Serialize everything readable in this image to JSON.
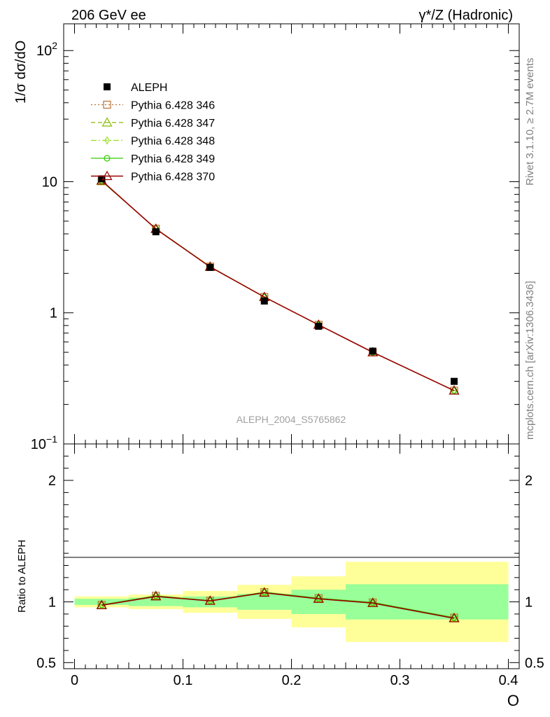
{
  "header": {
    "left": "206 GeV ee",
    "right": "γ*/Z (Hadronic)"
  },
  "side_labels": {
    "rivet": "Rivet 3.1.10, ≥ 2.7M events",
    "mcplots": "mcplots.cern.ch [arXiv:1306.3436]"
  },
  "watermark": "ALEPH_2004_S5765862",
  "colors": {
    "data": "#000000",
    "p346": "#b87333",
    "p347": "#88bb00",
    "p348": "#99dd22",
    "p349": "#33cc00",
    "p370": "#990000",
    "band_inner": "#99ff99",
    "band_outer": "#ffff99"
  },
  "chart_data": [
    {
      "type": "line",
      "panel": "main",
      "ylabel": "1/σ  dσ/dO",
      "yscale": "log",
      "ylim": [
        0.1,
        160
      ],
      "xlim": [
        -0.01,
        0.41
      ],
      "y_ticks": [
        {
          "value": 100,
          "label": "10",
          "sup": "2"
        },
        {
          "value": 10,
          "label": "10",
          "sup": ""
        },
        {
          "value": 1,
          "label": "1",
          "sup": ""
        },
        {
          "value": 0.1,
          "label": "10",
          "sup": "−1"
        }
      ],
      "legend_position": "top-left",
      "legend": [
        {
          "label": "ALEPH"
        },
        {
          "label": "Pythia 6.428 346"
        },
        {
          "label": "Pythia 6.428 347"
        },
        {
          "label": "Pythia 6.428 348"
        },
        {
          "label": "Pythia 6.428 349"
        },
        {
          "label": "Pythia 6.428 370"
        }
      ],
      "x": [
        0.025,
        0.075,
        0.125,
        0.175,
        0.225,
        0.275,
        0.35
      ],
      "series": [
        {
          "name": "ALEPH",
          "values": [
            10.5,
            4.15,
            2.22,
            1.23,
            0.79,
            0.51,
            0.3
          ]
        },
        {
          "name": "Pythia 6.428 346",
          "values": [
            10.1,
            4.38,
            2.25,
            1.32,
            0.81,
            0.5,
            0.255
          ]
        },
        {
          "name": "Pythia 6.428 347",
          "values": [
            10.1,
            4.38,
            2.25,
            1.32,
            0.81,
            0.5,
            0.255
          ]
        },
        {
          "name": "Pythia 6.428 348",
          "values": [
            10.1,
            4.38,
            2.25,
            1.32,
            0.81,
            0.5,
            0.255
          ]
        },
        {
          "name": "Pythia 6.428 349",
          "values": [
            10.1,
            4.38,
            2.25,
            1.32,
            0.81,
            0.5,
            0.255
          ]
        },
        {
          "name": "Pythia 6.428 370",
          "values": [
            10.2,
            4.36,
            2.24,
            1.32,
            0.81,
            0.5,
            0.255
          ]
        }
      ]
    },
    {
      "type": "line",
      "panel": "ratio",
      "xlabel": "O",
      "ylabel": "Ratio to ALEPH",
      "ylim": [
        0.45,
        2.3
      ],
      "xlim": [
        -0.01,
        0.41
      ],
      "y_ticks": [
        {
          "value": 0.5,
          "label": "0.5"
        },
        {
          "value": 1,
          "label": "1"
        },
        {
          "value": 2,
          "label": "2"
        }
      ],
      "x_ticks": [
        {
          "value": 0,
          "label": "0"
        },
        {
          "value": 0.1,
          "label": "0.1"
        },
        {
          "value": 0.2,
          "label": "0.2"
        },
        {
          "value": 0.3,
          "label": "0.3"
        },
        {
          "value": 0.4,
          "label": "0.4"
        }
      ],
      "bins": [
        {
          "lo": 0.0,
          "hi": 0.05,
          "inner": [
            0.975,
            1.025
          ],
          "outer": [
            0.955,
            1.045
          ]
        },
        {
          "lo": 0.05,
          "hi": 0.1,
          "inner": [
            0.965,
            1.035
          ],
          "outer": [
            0.94,
            1.06
          ]
        },
        {
          "lo": 0.1,
          "hi": 0.15,
          "inner": [
            0.955,
            1.045
          ],
          "outer": [
            0.91,
            1.09
          ]
        },
        {
          "lo": 0.15,
          "hi": 0.2,
          "inner": [
            0.935,
            1.065
          ],
          "outer": [
            0.86,
            1.14
          ]
        },
        {
          "lo": 0.2,
          "hi": 0.25,
          "inner": [
            0.9,
            1.1
          ],
          "outer": [
            0.79,
            1.21
          ]
        },
        {
          "lo": 0.25,
          "hi": 0.4,
          "inner": [
            0.855,
            1.145
          ],
          "outer": [
            0.67,
            1.33
          ]
        }
      ],
      "x": [
        0.025,
        0.075,
        0.125,
        0.175,
        0.225,
        0.275,
        0.35
      ],
      "series": [
        {
          "name": "Pythia 6.428 346",
          "values": [
            0.975,
            1.05,
            1.01,
            1.08,
            1.03,
            0.995,
            0.87
          ]
        },
        {
          "name": "Pythia 6.428 347",
          "values": [
            0.975,
            1.05,
            1.01,
            1.08,
            1.03,
            0.995,
            0.87
          ]
        },
        {
          "name": "Pythia 6.428 348",
          "values": [
            0.975,
            1.05,
            1.01,
            1.08,
            1.03,
            0.995,
            0.87
          ]
        },
        {
          "name": "Pythia 6.428 349",
          "values": [
            0.975,
            1.05,
            1.01,
            1.08,
            1.03,
            0.995,
            0.87
          ]
        },
        {
          "name": "Pythia 6.428 370",
          "values": [
            0.972,
            1.045,
            1.008,
            1.075,
            1.025,
            0.99,
            0.865
          ]
        }
      ]
    }
  ]
}
